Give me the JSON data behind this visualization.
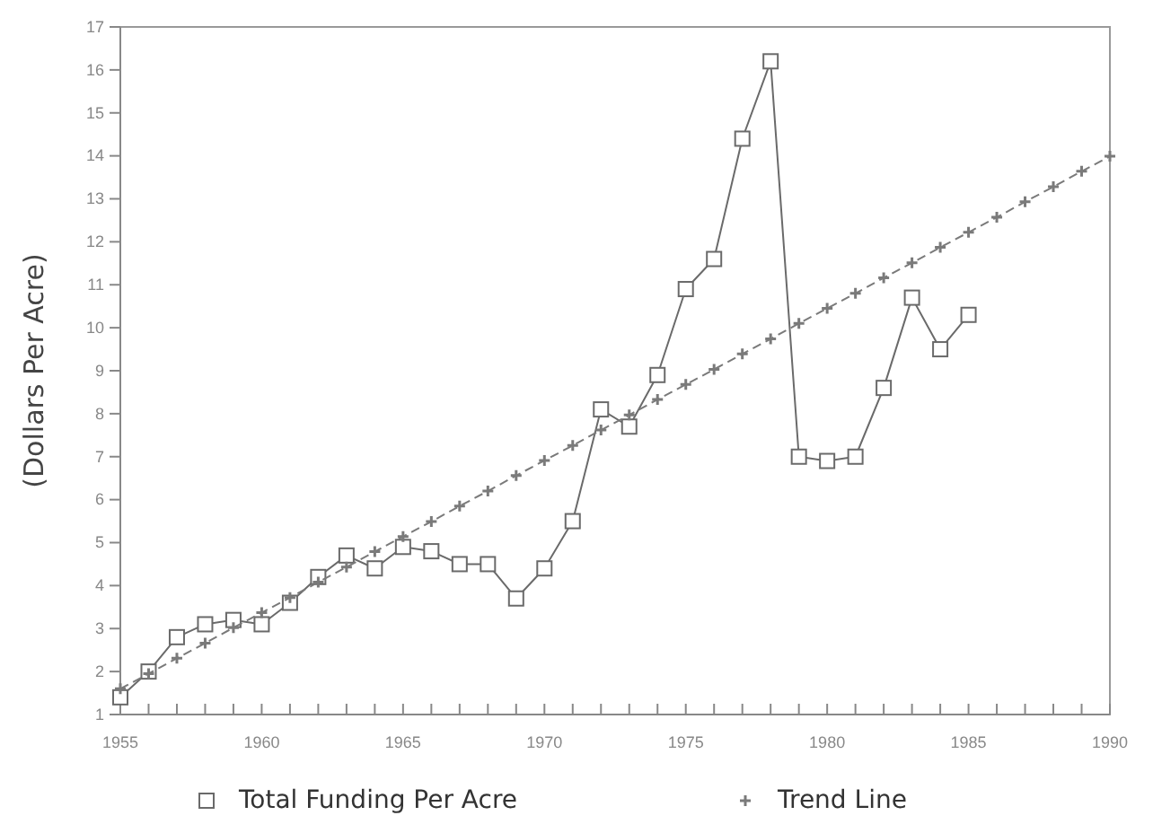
{
  "chart_data": {
    "type": "line",
    "ylabel": "(Dollars Per Acre)",
    "x": [
      1955,
      1956,
      1957,
      1958,
      1959,
      1960,
      1961,
      1962,
      1963,
      1964,
      1965,
      1966,
      1967,
      1968,
      1969,
      1970,
      1971,
      1972,
      1973,
      1974,
      1975,
      1976,
      1977,
      1978,
      1979,
      1980,
      1981,
      1982,
      1983,
      1984,
      1985
    ],
    "series": [
      {
        "name": "Total Funding Per Acre",
        "color": "#6a6a6a",
        "marker": "square",
        "line_style": "solid",
        "values": [
          1.4,
          2.0,
          2.8,
          3.1,
          3.2,
          3.1,
          3.6,
          4.2,
          4.7,
          4.4,
          4.9,
          4.8,
          4.5,
          4.5,
          3.7,
          4.4,
          5.5,
          8.1,
          7.7,
          8.9,
          10.9,
          11.6,
          14.4,
          16.2,
          7.0,
          6.9,
          7.0,
          8.6,
          10.7,
          9.5,
          10.3
        ]
      },
      {
        "name": "Trend Line",
        "color": "#7a7a7a",
        "marker": "cross",
        "line_style": "dashed",
        "x": [
          1955,
          1956,
          1957,
          1958,
          1959,
          1960,
          1961,
          1962,
          1963,
          1964,
          1965,
          1966,
          1967,
          1968,
          1969,
          1970,
          1971,
          1972,
          1973,
          1974,
          1975,
          1976,
          1977,
          1978,
          1979,
          1980,
          1981,
          1982,
          1983,
          1984,
          1985,
          1986,
          1987,
          1988,
          1989,
          1990
        ],
        "values": [
          1.6,
          1.95,
          2.31,
          2.66,
          3.02,
          3.37,
          3.72,
          4.08,
          4.43,
          4.79,
          5.14,
          5.49,
          5.85,
          6.2,
          6.56,
          6.91,
          7.26,
          7.62,
          7.97,
          8.33,
          8.68,
          9.03,
          9.39,
          9.74,
          10.1,
          10.45,
          10.8,
          11.16,
          11.51,
          11.87,
          12.22,
          12.57,
          12.93,
          13.28,
          13.64,
          13.99
        ]
      }
    ],
    "xlim": [
      1955,
      1990
    ],
    "xticks": [
      1955,
      {
        "value": 1956,
        "label": null
      },
      {
        "value": 1957,
        "label": null
      },
      {
        "value": 1958,
        "label": null
      },
      {
        "value": 1959,
        "label": null
      },
      1960,
      {
        "value": 1961,
        "label": null
      },
      {
        "value": 1962,
        "label": null
      },
      {
        "value": 1963,
        "label": null
      },
      {
        "value": 1964,
        "label": null
      },
      1965,
      {
        "value": 1966,
        "label": null
      },
      {
        "value": 1967,
        "label": null
      },
      {
        "value": 1968,
        "label": null
      },
      {
        "value": 1969,
        "label": null
      },
      1970,
      {
        "value": 1971,
        "label": null
      },
      {
        "value": 1972,
        "label": null
      },
      {
        "value": 1973,
        "label": null
      },
      {
        "value": 1974,
        "label": null
      },
      1975,
      {
        "value": 1976,
        "label": null
      },
      {
        "value": 1977,
        "label": null
      },
      {
        "value": 1978,
        "label": null
      },
      {
        "value": 1979,
        "label": null
      },
      1980,
      {
        "value": 1981,
        "label": null
      },
      {
        "value": 1982,
        "label": null
      },
      {
        "value": 1983,
        "label": null
      },
      {
        "value": 1984,
        "label": null
      },
      1985,
      {
        "value": 1986,
        "label": null
      },
      {
        "value": 1987,
        "label": null
      },
      {
        "value": 1988,
        "label": null
      },
      {
        "value": 1989,
        "label": null
      },
      1990
    ],
    "ylim": [
      1,
      17
    ],
    "yticks": [
      1,
      2,
      3,
      4,
      5,
      6,
      7,
      8,
      9,
      10,
      11,
      12,
      13,
      14,
      15,
      16,
      17
    ],
    "grid": false,
    "legend": "bottom"
  }
}
